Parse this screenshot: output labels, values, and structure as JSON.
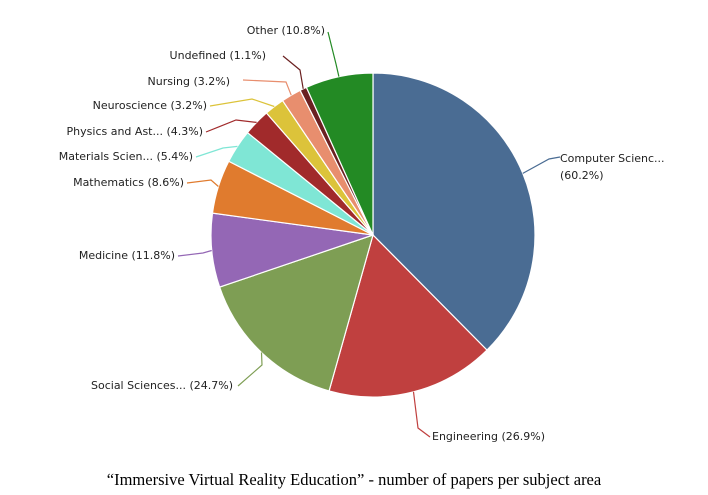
{
  "caption": "“Immersive Virtual Reality Education” - number of papers per subject area",
  "chart_data": {
    "type": "pie",
    "start_angle_deg": 0,
    "direction": "clockwise",
    "slices": [
      {
        "label": "Computer Scienc...",
        "value": 60.2,
        "display": "(60.2%)",
        "color": "#4a6c93"
      },
      {
        "label": "Engineering",
        "value": 26.9,
        "display": "Engineering (26.9%)",
        "color": "#c0403f"
      },
      {
        "label": "Social Sciences...",
        "value": 24.7,
        "display": "Social Sciences... (24.7%)",
        "color": "#7e9e54"
      },
      {
        "label": "Medicine",
        "value": 11.8,
        "display": "Medicine (11.8%)",
        "color": "#9467b5"
      },
      {
        "label": "Mathematics",
        "value": 8.6,
        "display": "Mathematics (8.6%)",
        "color": "#e07b2e"
      },
      {
        "label": "Materials Scien...",
        "value": 5.4,
        "display": "Materials Scien... (5.4%)",
        "color": "#7fe6d5"
      },
      {
        "label": "Physics and Ast...",
        "value": 4.3,
        "display": "Physics and Ast... (4.3%)",
        "color": "#a12a2b"
      },
      {
        "label": "Neuroscience",
        "value": 3.2,
        "display": "Neuroscience (3.2%)",
        "color": "#dcc33a"
      },
      {
        "label": "Nursing",
        "value": 3.2,
        "display": "Nursing (3.2%)",
        "color": "#e88e6e"
      },
      {
        "label": "Undefined",
        "value": 1.1,
        "display": "Undefined (1.1%)",
        "color": "#6b2121"
      },
      {
        "label": "Other",
        "value": 10.8,
        "display": "Other (10.8%)",
        "color": "#238a24"
      }
    ]
  }
}
